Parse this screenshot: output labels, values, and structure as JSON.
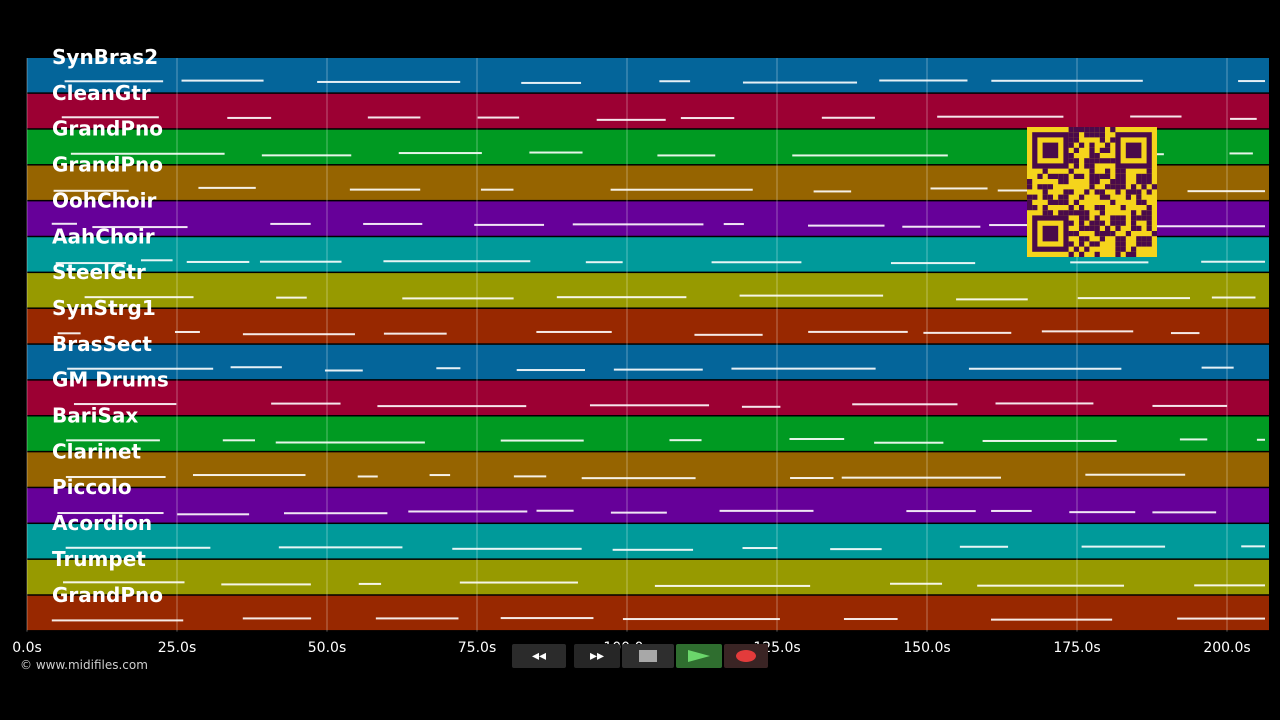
{
  "tracks": [
    {
      "name": "SynBras2",
      "color": "#04659a"
    },
    {
      "name": "CleanGtr",
      "color": "#9c0033"
    },
    {
      "name": "GrandPno",
      "color": "#009a22"
    },
    {
      "name": "GrandPno",
      "color": "#966400"
    },
    {
      "name": "OohChoir",
      "color": "#660099"
    },
    {
      "name": "AahChoir",
      "color": "#009a9a"
    },
    {
      "name": "SteelGtr",
      "color": "#979a00"
    },
    {
      "name": "SynStrg1",
      "color": "#982800"
    },
    {
      "name": "BrasSect",
      "color": "#04659a"
    },
    {
      "name": "GM Drums",
      "color": "#9c0033"
    },
    {
      "name": "BariSax",
      "color": "#009a22"
    },
    {
      "name": "Clarinet",
      "color": "#966400"
    },
    {
      "name": "Piccolo",
      "color": "#660099"
    },
    {
      "name": "Acordion",
      "color": "#009a9a"
    },
    {
      "name": "Trumpet",
      "color": "#979a00"
    },
    {
      "name": "GrandPno",
      "color": "#982800"
    }
  ],
  "timeline": {
    "ticks": [
      "0.0s",
      "25.0s",
      "50.0s",
      "75.0s",
      "100.0s",
      "125.0s",
      "150.0s",
      "175.0s",
      "200.0s"
    ]
  },
  "copyright": "© www.midifiles.com",
  "transport": {
    "rewind": "◂◂",
    "fast_forward": "▸▸",
    "stop": "stop",
    "play": "play",
    "record": "record"
  },
  "colors": {
    "background": "#000000",
    "note": "#ffffff",
    "gridline": "#ffffff",
    "qr_background": "#f5d41c",
    "qr_foreground": "#4a0a4a"
  }
}
